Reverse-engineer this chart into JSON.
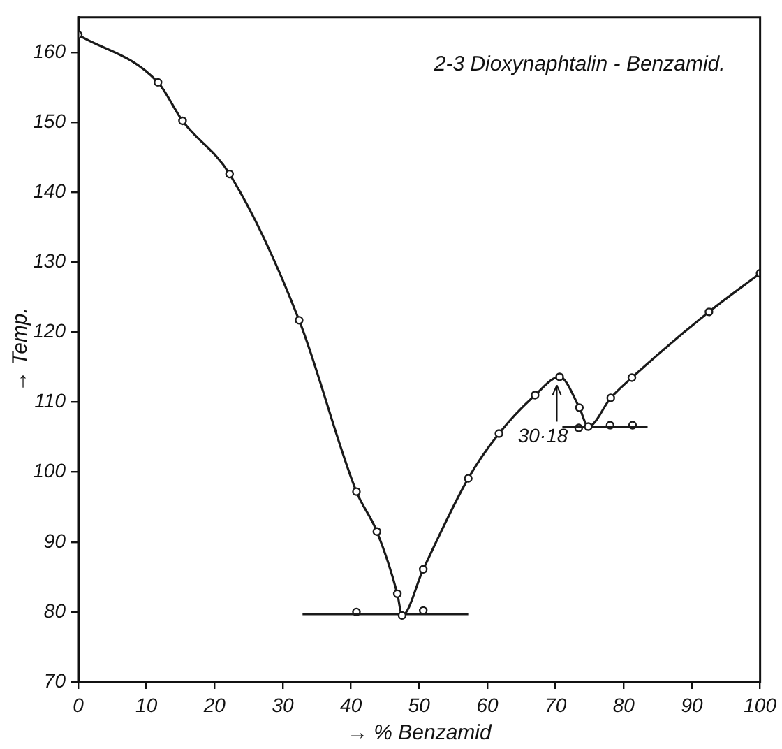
{
  "chart_data": {
    "type": "line",
    "title": "2-3 Dioxynaphtalin - Benzamid.",
    "xlabel": "→ % Benzamid",
    "ylabel": "→ Temp.",
    "xlim": [
      0,
      100
    ],
    "xticks": [
      0,
      10,
      20,
      30,
      40,
      50,
      60,
      70,
      80,
      90,
      100
    ],
    "ylim": [
      70,
      165
    ],
    "yticks": [
      70,
      80,
      90,
      100,
      110,
      120,
      130,
      140,
      150,
      160
    ],
    "grid": false,
    "legend": false,
    "series": [
      {
        "color": "#1a1a1a",
        "marker": "circle",
        "x": [
          0,
          11.7,
          15.3,
          22.2,
          32.4,
          40.8,
          43.8,
          46.8,
          47.5,
          50.6,
          57.2,
          61.7,
          67,
          70.6,
          73.5,
          74.8,
          78.1,
          81.2,
          92.5,
          100
        ],
        "values": [
          162.5,
          155.7,
          150.2,
          142.6,
          121.7,
          97.2,
          91.5,
          82.6,
          79.5,
          86.1,
          99.1,
          105.5,
          111,
          113.6,
          109.2,
          106.5,
          110.6,
          113.5,
          122.9,
          128.4
        ]
      },
      {
        "color": "#1a1a1a",
        "marker": "none",
        "x": [
          32.9,
          57.2
        ],
        "values": [
          79.7,
          79.7
        ]
      },
      {
        "color": "#1a1a1a",
        "marker": "none",
        "x": [
          71,
          83.5
        ],
        "values": [
          106.5,
          106.5
        ]
      },
      {
        "type": "scatter",
        "color": "#1a1a1a",
        "marker": "circle",
        "x": [
          40.8,
          50.6,
          73.4,
          78,
          81.3
        ],
        "values": [
          80,
          80.2,
          106.3,
          106.7,
          106.7
        ]
      }
    ],
    "annotations": [
      {
        "text": "30·18",
        "x": 70.6,
        "y": 113.6
      }
    ]
  }
}
